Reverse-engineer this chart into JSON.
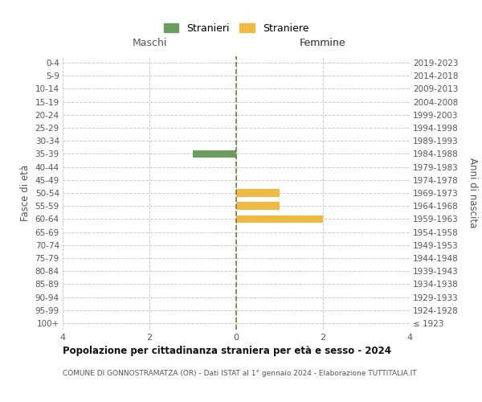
{
  "age_groups": [
    "100+",
    "95-99",
    "90-94",
    "85-89",
    "80-84",
    "75-79",
    "70-74",
    "65-69",
    "60-64",
    "55-59",
    "50-54",
    "45-49",
    "40-44",
    "35-39",
    "30-34",
    "25-29",
    "20-24",
    "15-19",
    "10-14",
    "5-9",
    "0-4"
  ],
  "birth_years": [
    "≤ 1923",
    "1924-1928",
    "1929-1933",
    "1934-1938",
    "1939-1943",
    "1944-1948",
    "1949-1953",
    "1954-1958",
    "1959-1963",
    "1964-1968",
    "1969-1973",
    "1974-1978",
    "1979-1983",
    "1984-1988",
    "1989-1993",
    "1994-1998",
    "1999-2003",
    "2004-2008",
    "2009-2013",
    "2014-2018",
    "2019-2023"
  ],
  "males": [
    0,
    0,
    0,
    0,
    0,
    0,
    0,
    0,
    0,
    0,
    0,
    0,
    0,
    1,
    0,
    0,
    0,
    0,
    0,
    0,
    0
  ],
  "females": [
    0,
    0,
    0,
    0,
    0,
    0,
    0,
    0,
    2,
    1,
    1,
    0,
    0,
    0,
    0,
    0,
    0,
    0,
    0,
    0,
    0
  ],
  "male_color": "#6a9e5e",
  "female_color": "#f0b942",
  "grid_color": "#cccccc",
  "center_line_color": "#7a7a40",
  "xlim": 4,
  "xlabel_left": "Maschi",
  "xlabel_right": "Femmine",
  "ylabel_left": "Fasce di età",
  "ylabel_right": "Anni di nascita",
  "legend_stranieri": "Stranieri",
  "legend_straniere": "Straniere",
  "title": "Popolazione per cittadinanza straniera per età e sesso - 2024",
  "subtitle": "COMUNE DI GONNOSTRAMATZA (OR) - Dati ISTAT al 1° gennaio 2024 - Elaborazione TUTTITALIA.IT",
  "background_color": "#ffffff"
}
